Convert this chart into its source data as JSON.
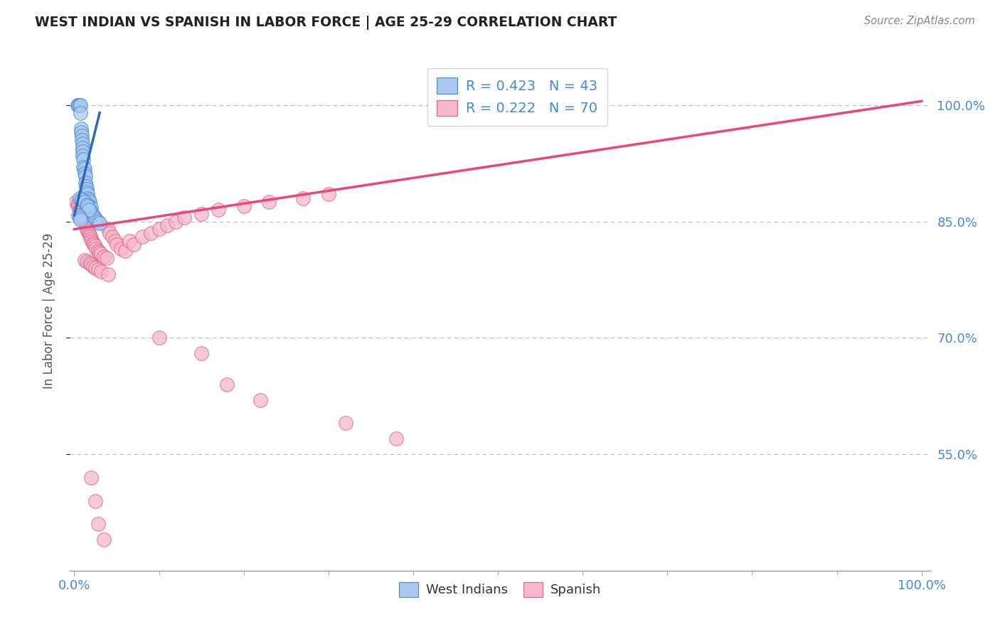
{
  "title": "WEST INDIAN VS SPANISH IN LABOR FORCE | AGE 25-29 CORRELATION CHART",
  "source_text": "Source: ZipAtlas.com",
  "ylabel": "In Labor Force | Age 25-29",
  "ytick_labels": [
    "55.0%",
    "70.0%",
    "85.0%",
    "100.0%"
  ],
  "ytick_values": [
    0.55,
    0.7,
    0.85,
    1.0
  ],
  "blue_R": "R = 0.423",
  "blue_N": "N = 43",
  "pink_R": "R = 0.222",
  "pink_N": "N = 70",
  "legend_label_blue": "West Indians",
  "legend_label_pink": "Spanish",
  "blue_color": "#a8c8f0",
  "pink_color": "#f5b8cc",
  "blue_edge_color": "#4488cc",
  "pink_edge_color": "#e06080",
  "blue_line_color": "#3366bb",
  "pink_line_color": "#ee4477",
  "bg_color": "#ffffff",
  "grid_color": "#bbbbbb",
  "title_color": "#222222",
  "source_color": "#888888",
  "axis_label_color": "#4488dd",
  "blue_x": [
    0.004,
    0.005,
    0.006,
    0.007,
    0.007,
    0.008,
    0.008,
    0.009,
    0.009,
    0.01,
    0.01,
    0.01,
    0.01,
    0.011,
    0.011,
    0.012,
    0.012,
    0.013,
    0.013,
    0.014,
    0.015,
    0.015,
    0.016,
    0.016,
    0.017,
    0.018,
    0.018,
    0.02,
    0.02,
    0.022,
    0.024,
    0.026,
    0.028,
    0.03,
    0.006,
    0.009,
    0.012,
    0.015,
    0.016,
    0.017,
    0.005,
    0.006,
    0.007
  ],
  "blue_y": [
    1.0,
    1.0,
    1.0,
    1.0,
    0.99,
    0.97,
    0.965,
    0.96,
    0.955,
    0.95,
    0.945,
    0.94,
    0.935,
    0.93,
    0.92,
    0.918,
    0.912,
    0.908,
    0.9,
    0.895,
    0.892,
    0.888,
    0.885,
    0.88,
    0.878,
    0.875,
    0.87,
    0.868,
    0.862,
    0.858,
    0.855,
    0.852,
    0.85,
    0.848,
    0.88,
    0.878,
    0.875,
    0.872,
    0.87,
    0.865,
    0.858,
    0.855,
    0.852
  ],
  "pink_x": [
    0.002,
    0.004,
    0.005,
    0.006,
    0.007,
    0.008,
    0.009,
    0.01,
    0.01,
    0.011,
    0.012,
    0.013,
    0.014,
    0.015,
    0.015,
    0.016,
    0.017,
    0.018,
    0.019,
    0.02,
    0.021,
    0.022,
    0.023,
    0.025,
    0.026,
    0.028,
    0.03,
    0.032,
    0.035,
    0.038,
    0.04,
    0.042,
    0.045,
    0.048,
    0.05,
    0.055,
    0.06,
    0.065,
    0.07,
    0.08,
    0.09,
    0.1,
    0.11,
    0.12,
    0.13,
    0.15,
    0.17,
    0.2,
    0.23,
    0.27,
    0.3,
    0.012,
    0.015,
    0.018,
    0.02,
    0.022,
    0.025,
    0.028,
    0.032,
    0.04,
    0.1,
    0.15,
    0.18,
    0.22,
    0.32,
    0.38,
    0.02,
    0.025,
    0.028,
    0.035
  ],
  "pink_y": [
    0.875,
    0.872,
    0.87,
    0.868,
    0.865,
    0.862,
    0.86,
    0.858,
    0.855,
    0.852,
    0.85,
    0.848,
    0.845,
    0.843,
    0.84,
    0.838,
    0.835,
    0.832,
    0.83,
    0.828,
    0.825,
    0.822,
    0.82,
    0.818,
    0.815,
    0.812,
    0.81,
    0.808,
    0.805,
    0.803,
    0.84,
    0.835,
    0.83,
    0.825,
    0.82,
    0.815,
    0.812,
    0.825,
    0.82,
    0.83,
    0.835,
    0.84,
    0.845,
    0.85,
    0.855,
    0.86,
    0.865,
    0.87,
    0.875,
    0.88,
    0.885,
    0.8,
    0.798,
    0.796,
    0.795,
    0.792,
    0.79,
    0.788,
    0.785,
    0.782,
    0.7,
    0.68,
    0.64,
    0.62,
    0.59,
    0.57,
    0.52,
    0.49,
    0.46,
    0.44
  ],
  "blue_trend_x": [
    0.0,
    0.03
  ],
  "blue_trend_y": [
    0.858,
    0.99
  ],
  "pink_trend_x": [
    0.0,
    1.0
  ],
  "pink_trend_y": [
    0.84,
    1.005
  ],
  "xlim": [
    -0.005,
    1.01
  ],
  "ylim": [
    0.4,
    1.07
  ]
}
